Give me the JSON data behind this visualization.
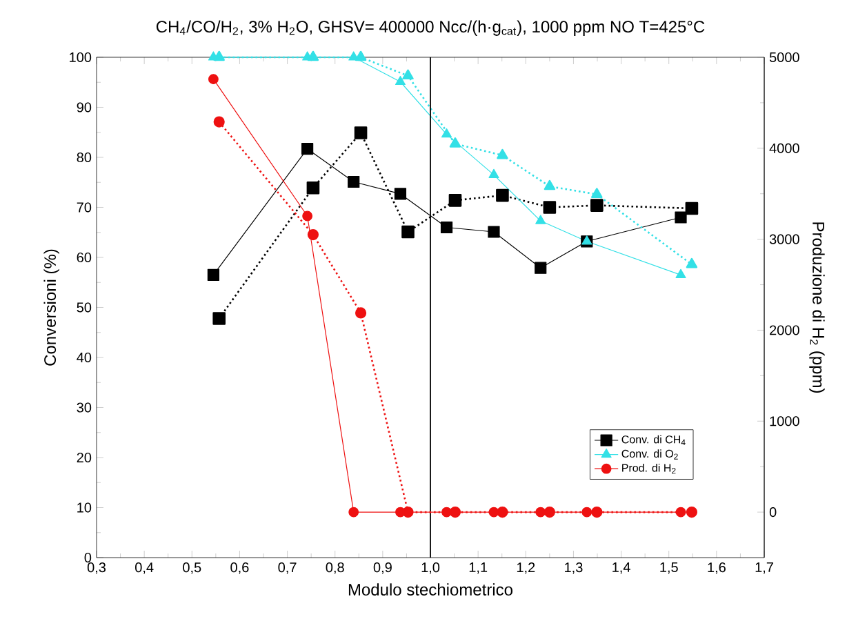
{
  "chart_data": {
    "type": "line",
    "title": "CH$_{4}$/CO/H$_{2}$, 3% H$_{2}$O, GHSV= 400000 Ncc/(h·g$_{cat}$), 1000 ppm NO T=425°C",
    "xlabel": "Modulo stechiometrico",
    "ylabel": "Conversioni (%)",
    "y2label": "Produzione di H$_{2}$ (ppm)",
    "xlim": [
      0.3,
      1.7
    ],
    "xticks": [
      {
        "value": 0.3,
        "label": "0,3"
      },
      {
        "value": 0.4,
        "label": "0,4"
      },
      {
        "value": 0.5,
        "label": "0,5"
      },
      {
        "value": 0.6,
        "label": "0,6"
      },
      {
        "value": 0.7,
        "label": "0,7"
      },
      {
        "value": 0.8,
        "label": "0,8"
      },
      {
        "value": 0.9,
        "label": "0,9"
      },
      {
        "value": 1.0,
        "label": "1,0"
      },
      {
        "value": 1.1,
        "label": "1,1"
      },
      {
        "value": 1.2,
        "label": "1,2"
      },
      {
        "value": 1.3,
        "label": "1,3"
      },
      {
        "value": 1.4,
        "label": "1,4"
      },
      {
        "value": 1.5,
        "label": "1,5"
      },
      {
        "value": 1.6,
        "label": "1,6"
      },
      {
        "value": 1.7,
        "label": "1,7"
      }
    ],
    "ylim": [
      0,
      100
    ],
    "yticks": [
      0,
      10,
      20,
      30,
      40,
      50,
      60,
      70,
      80,
      90,
      100
    ],
    "y2lim": [
      -500,
      5000
    ],
    "y2ticks": [
      0,
      1000,
      2000,
      3000,
      4000,
      5000
    ],
    "legend": "bottom right",
    "ref_lines": [
      {
        "axis": "x",
        "value": 1.0,
        "color": "#000000"
      }
    ],
    "series": [
      {
        "name": "Conv. di CH$_{4}$",
        "color": "#000000",
        "marker": "square",
        "line_style": "solid",
        "x": [
          0.545,
          0.742,
          0.839,
          0.937,
          1.034,
          1.133,
          1.231,
          1.328,
          1.525
        ],
        "values": [
          56.5,
          81.7,
          75.1,
          72.7,
          66.0,
          65.1,
          57.9,
          63.2,
          68.0
        ]
      },
      {
        "color": "#000000",
        "marker": "square",
        "line_style": "dotted",
        "x": [
          0.557,
          0.754,
          0.854,
          0.953,
          1.052,
          1.151,
          1.25,
          1.349,
          1.548
        ],
        "values": [
          47.8,
          73.9,
          84.9,
          65.1,
          71.4,
          72.4,
          70.0,
          70.4,
          69.8
        ]
      },
      {
        "name": "Conv. di O$_{2}$",
        "color": "#33e0e6",
        "marker": "triangle",
        "line_style": "solid",
        "x": [
          0.545,
          0.742,
          0.839,
          0.937,
          1.034,
          1.133,
          1.231,
          1.328,
          1.525
        ],
        "values": [
          100,
          100,
          100,
          95.1,
          84.6,
          76.5,
          67.3,
          63.2,
          56.5
        ]
      },
      {
        "color": "#33e0e6",
        "marker": "triangle",
        "line_style": "dotted",
        "x": [
          0.557,
          0.754,
          0.854,
          0.953,
          1.052,
          1.151,
          1.25,
          1.349,
          1.548
        ],
        "values": [
          100,
          100,
          100,
          96.3,
          82.7,
          80.4,
          74.2,
          72.6,
          58.6
        ]
      },
      {
        "name": "Prod. di H$_{2}$",
        "color": "#ee1111",
        "marker": "circle",
        "line_style": "solid",
        "axis": "y2",
        "x": [
          0.545,
          0.742,
          0.839,
          0.937,
          1.034,
          1.133,
          1.231,
          1.328,
          1.525
        ],
        "values": [
          4760,
          3255,
          0,
          0,
          0,
          0,
          0,
          0,
          0
        ]
      },
      {
        "color": "#ee1111",
        "marker": "circle",
        "line_style": "dotted",
        "axis": "y2",
        "x": [
          0.557,
          0.754,
          0.854,
          0.953,
          1.052,
          1.151,
          1.25,
          1.349,
          1.548
        ],
        "values": [
          4290,
          3050,
          2190,
          0,
          0,
          0,
          0,
          0,
          0
        ]
      }
    ]
  }
}
